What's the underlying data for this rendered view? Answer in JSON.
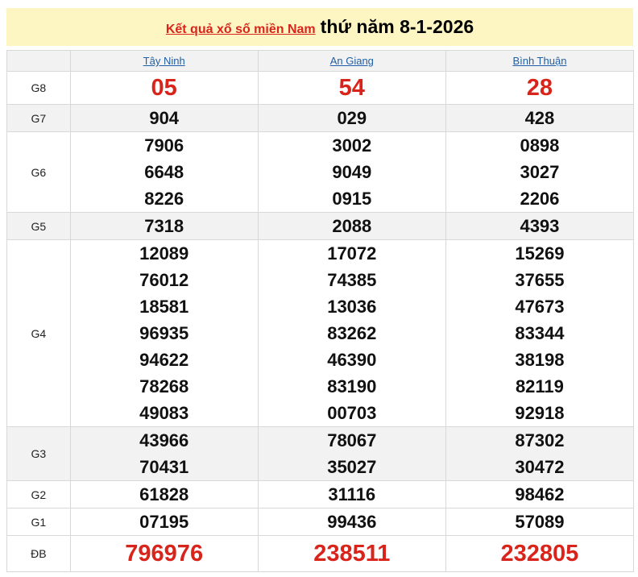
{
  "header": {
    "title_link": "Kết quả xổ số miền Nam",
    "date": "thứ năm 8-1-2026"
  },
  "colors": {
    "banner_bg": "#fdf6c3",
    "accent_red": "#d9241b",
    "link_blue": "#1f5fa6"
  },
  "provinces": [
    "Tây Ninh",
    "An Giang",
    "Bình Thuận"
  ],
  "rows": [
    {
      "label": "G8",
      "cls": "g8",
      "values": [
        [
          "05"
        ],
        [
          "54"
        ],
        [
          "28"
        ]
      ]
    },
    {
      "label": "G7",
      "cls": "alt",
      "values": [
        [
          "904"
        ],
        [
          "029"
        ],
        [
          "428"
        ]
      ]
    },
    {
      "label": "G6",
      "cls": "",
      "values": [
        [
          "7906",
          "6648",
          "8226"
        ],
        [
          "3002",
          "9049",
          "0915"
        ],
        [
          "0898",
          "3027",
          "2206"
        ]
      ]
    },
    {
      "label": "G5",
      "cls": "alt",
      "values": [
        [
          "7318"
        ],
        [
          "2088"
        ],
        [
          "4393"
        ]
      ]
    },
    {
      "label": "G4",
      "cls": "",
      "values": [
        [
          "12089",
          "76012",
          "18581",
          "96935",
          "94622",
          "78268",
          "49083"
        ],
        [
          "17072",
          "74385",
          "13036",
          "83262",
          "46390",
          "83190",
          "00703"
        ],
        [
          "15269",
          "37655",
          "47673",
          "83344",
          "38198",
          "82119",
          "92918"
        ]
      ]
    },
    {
      "label": "G3",
      "cls": "alt",
      "values": [
        [
          "43966",
          "70431"
        ],
        [
          "78067",
          "35027"
        ],
        [
          "87302",
          "30472"
        ]
      ]
    },
    {
      "label": "G2",
      "cls": "",
      "values": [
        [
          "61828"
        ],
        [
          "31116"
        ],
        [
          "98462"
        ]
      ]
    },
    {
      "label": "G1",
      "cls": "",
      "values": [
        [
          "07195"
        ],
        [
          "99436"
        ],
        [
          "57089"
        ]
      ]
    },
    {
      "label": "ĐB",
      "cls": "db",
      "values": [
        [
          "796976"
        ],
        [
          "238511"
        ],
        [
          "232805"
        ]
      ]
    }
  ]
}
